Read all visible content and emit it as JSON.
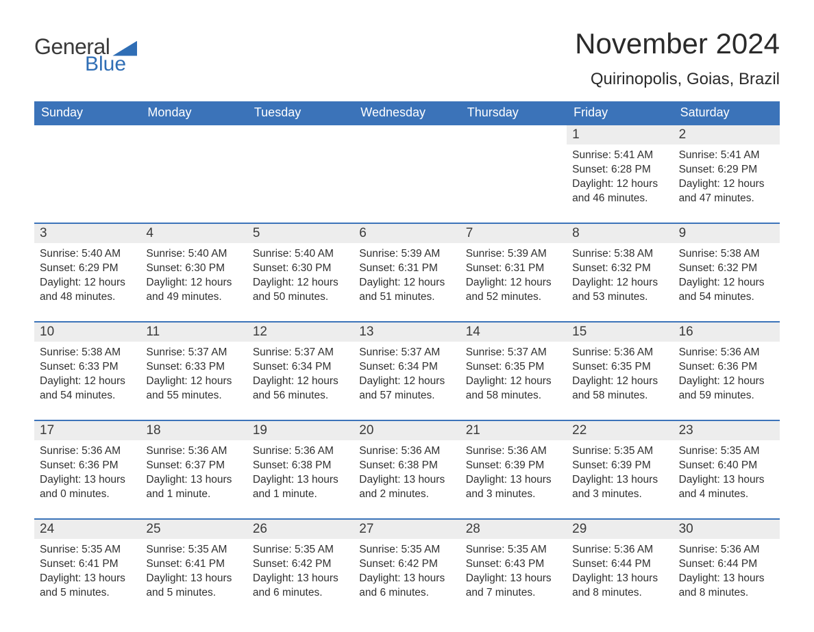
{
  "brand": {
    "general": "General",
    "blue": "Blue"
  },
  "title": "November 2024",
  "location": "Quirinopolis, Goias, Brazil",
  "colors": {
    "header_bg": "#3b73b9",
    "header_text": "#ffffff",
    "daynum_bg": "#ededed",
    "rule": "#3b73b9",
    "body_text": "#2f2f2f",
    "brand_blue": "#2f6eb5",
    "page_bg": "#ffffff"
  },
  "typography": {
    "title_fontsize": 42,
    "location_fontsize": 24,
    "dayheader_fontsize": 18,
    "daynum_fontsize": 19,
    "cell_fontsize": 15.5,
    "logo_fontsize": 32
  },
  "layout": {
    "columns": 7,
    "weeks": 5,
    "first_day_column_index": 5
  },
  "day_names": [
    "Sunday",
    "Monday",
    "Tuesday",
    "Wednesday",
    "Thursday",
    "Friday",
    "Saturday"
  ],
  "labels": {
    "sunrise": "Sunrise:",
    "sunset": "Sunset:",
    "daylight": "Daylight:"
  },
  "days": [
    {
      "n": 1,
      "sunrise": "5:41 AM",
      "sunset": "6:28 PM",
      "daylight": "12 hours and 46 minutes."
    },
    {
      "n": 2,
      "sunrise": "5:41 AM",
      "sunset": "6:29 PM",
      "daylight": "12 hours and 47 minutes."
    },
    {
      "n": 3,
      "sunrise": "5:40 AM",
      "sunset": "6:29 PM",
      "daylight": "12 hours and 48 minutes."
    },
    {
      "n": 4,
      "sunrise": "5:40 AM",
      "sunset": "6:30 PM",
      "daylight": "12 hours and 49 minutes."
    },
    {
      "n": 5,
      "sunrise": "5:40 AM",
      "sunset": "6:30 PM",
      "daylight": "12 hours and 50 minutes."
    },
    {
      "n": 6,
      "sunrise": "5:39 AM",
      "sunset": "6:31 PM",
      "daylight": "12 hours and 51 minutes."
    },
    {
      "n": 7,
      "sunrise": "5:39 AM",
      "sunset": "6:31 PM",
      "daylight": "12 hours and 52 minutes."
    },
    {
      "n": 8,
      "sunrise": "5:38 AM",
      "sunset": "6:32 PM",
      "daylight": "12 hours and 53 minutes."
    },
    {
      "n": 9,
      "sunrise": "5:38 AM",
      "sunset": "6:32 PM",
      "daylight": "12 hours and 54 minutes."
    },
    {
      "n": 10,
      "sunrise": "5:38 AM",
      "sunset": "6:33 PM",
      "daylight": "12 hours and 54 minutes."
    },
    {
      "n": 11,
      "sunrise": "5:37 AM",
      "sunset": "6:33 PM",
      "daylight": "12 hours and 55 minutes."
    },
    {
      "n": 12,
      "sunrise": "5:37 AM",
      "sunset": "6:34 PM",
      "daylight": "12 hours and 56 minutes."
    },
    {
      "n": 13,
      "sunrise": "5:37 AM",
      "sunset": "6:34 PM",
      "daylight": "12 hours and 57 minutes."
    },
    {
      "n": 14,
      "sunrise": "5:37 AM",
      "sunset": "6:35 PM",
      "daylight": "12 hours and 58 minutes."
    },
    {
      "n": 15,
      "sunrise": "5:36 AM",
      "sunset": "6:35 PM",
      "daylight": "12 hours and 58 minutes."
    },
    {
      "n": 16,
      "sunrise": "5:36 AM",
      "sunset": "6:36 PM",
      "daylight": "12 hours and 59 minutes."
    },
    {
      "n": 17,
      "sunrise": "5:36 AM",
      "sunset": "6:36 PM",
      "daylight": "13 hours and 0 minutes."
    },
    {
      "n": 18,
      "sunrise": "5:36 AM",
      "sunset": "6:37 PM",
      "daylight": "13 hours and 1 minute."
    },
    {
      "n": 19,
      "sunrise": "5:36 AM",
      "sunset": "6:38 PM",
      "daylight": "13 hours and 1 minute."
    },
    {
      "n": 20,
      "sunrise": "5:36 AM",
      "sunset": "6:38 PM",
      "daylight": "13 hours and 2 minutes."
    },
    {
      "n": 21,
      "sunrise": "5:36 AM",
      "sunset": "6:39 PM",
      "daylight": "13 hours and 3 minutes."
    },
    {
      "n": 22,
      "sunrise": "5:35 AM",
      "sunset": "6:39 PM",
      "daylight": "13 hours and 3 minutes."
    },
    {
      "n": 23,
      "sunrise": "5:35 AM",
      "sunset": "6:40 PM",
      "daylight": "13 hours and 4 minutes."
    },
    {
      "n": 24,
      "sunrise": "5:35 AM",
      "sunset": "6:41 PM",
      "daylight": "13 hours and 5 minutes."
    },
    {
      "n": 25,
      "sunrise": "5:35 AM",
      "sunset": "6:41 PM",
      "daylight": "13 hours and 5 minutes."
    },
    {
      "n": 26,
      "sunrise": "5:35 AM",
      "sunset": "6:42 PM",
      "daylight": "13 hours and 6 minutes."
    },
    {
      "n": 27,
      "sunrise": "5:35 AM",
      "sunset": "6:42 PM",
      "daylight": "13 hours and 6 minutes."
    },
    {
      "n": 28,
      "sunrise": "5:35 AM",
      "sunset": "6:43 PM",
      "daylight": "13 hours and 7 minutes."
    },
    {
      "n": 29,
      "sunrise": "5:36 AM",
      "sunset": "6:44 PM",
      "daylight": "13 hours and 8 minutes."
    },
    {
      "n": 30,
      "sunrise": "5:36 AM",
      "sunset": "6:44 PM",
      "daylight": "13 hours and 8 minutes."
    }
  ]
}
